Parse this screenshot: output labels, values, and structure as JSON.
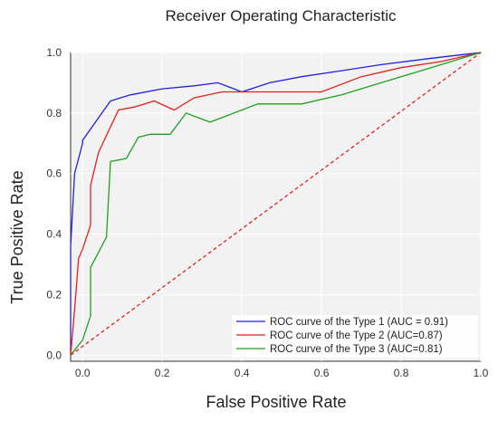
{
  "chart_data": {
    "type": "line",
    "title": "Receiver Operating Characteristic",
    "xlabel": "False Positive Rate",
    "ylabel": "True Positive Rate",
    "xlim": [
      -0.03,
      1.0
    ],
    "ylim": [
      -0.02,
      1.0
    ],
    "x_ticks": [
      "0.0",
      "0.2",
      "0.4",
      "0.6",
      "0.8",
      "1.0"
    ],
    "x_tick_values": [
      0.0,
      0.2,
      0.4,
      0.6,
      0.8,
      1.0
    ],
    "y_ticks": [
      "0.0",
      "0.2",
      "0.4",
      "0.6",
      "0.8",
      "1.0"
    ],
    "y_tick_values": [
      0.0,
      0.2,
      0.4,
      0.6,
      0.8,
      1.0
    ],
    "grid": true,
    "legend_position": "lower-right",
    "background": "#f2f2f2",
    "series": [
      {
        "name": "ROC curve of the Type 1 (AUC = 0.91)",
        "color": "#2020e0",
        "x": [
          -0.03,
          -0.03,
          -0.02,
          0.0,
          0.0,
          0.07,
          0.12,
          0.2,
          0.28,
          0.34,
          0.4,
          0.47,
          0.55,
          0.65,
          0.75,
          0.87,
          1.0
        ],
        "y": [
          0.0,
          0.36,
          0.6,
          0.7,
          0.71,
          0.84,
          0.86,
          0.88,
          0.89,
          0.9,
          0.87,
          0.9,
          0.92,
          0.94,
          0.96,
          0.98,
          1.0
        ],
        "dash": "solid"
      },
      {
        "name": "ROC curve of the Type 2 (AUC=0.87)",
        "color": "#e02020",
        "x": [
          -0.03,
          -0.02,
          -0.01,
          0.0,
          0.02,
          0.02,
          0.04,
          0.09,
          0.13,
          0.18,
          0.23,
          0.28,
          0.35,
          0.45,
          0.55,
          0.6,
          0.7,
          0.8,
          0.9,
          1.0
        ],
        "y": [
          0.0,
          0.15,
          0.32,
          0.35,
          0.43,
          0.56,
          0.67,
          0.81,
          0.82,
          0.84,
          0.81,
          0.85,
          0.87,
          0.87,
          0.87,
          0.87,
          0.92,
          0.95,
          0.97,
          1.0
        ],
        "dash": "solid"
      },
      {
        "name": "ROC curve of the Type 3 (AUC=0.81)",
        "color": "#20a020",
        "x": [
          -0.03,
          0.0,
          0.02,
          0.02,
          0.06,
          0.07,
          0.11,
          0.14,
          0.17,
          0.22,
          0.26,
          0.32,
          0.38,
          0.44,
          0.5,
          0.55,
          0.65,
          0.75,
          0.85,
          1.0
        ],
        "y": [
          0.0,
          0.05,
          0.13,
          0.29,
          0.39,
          0.64,
          0.65,
          0.72,
          0.73,
          0.73,
          0.8,
          0.77,
          0.8,
          0.83,
          0.83,
          0.83,
          0.86,
          0.9,
          0.94,
          1.0
        ],
        "dash": "solid"
      },
      {
        "color": "#e02020",
        "x": [
          -0.03,
          1.0
        ],
        "y": [
          0.0,
          1.0
        ],
        "dash": "dashed"
      }
    ]
  }
}
